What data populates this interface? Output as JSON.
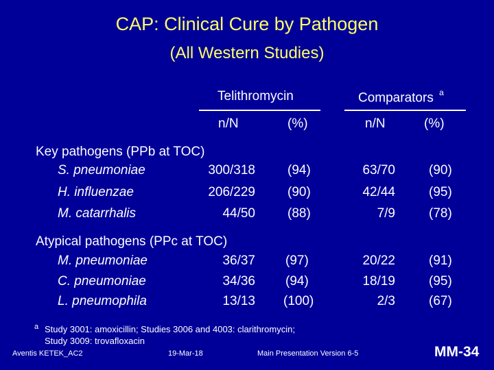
{
  "slide": {
    "title": "CAP: Clinical Cure by Pathogen",
    "subtitle": "(All Western Studies)"
  },
  "table": {
    "group1_header": "Telithromycin",
    "group2_header": "Comparators",
    "group2_sup": "a",
    "col_n": "n/N",
    "col_pct": "(%)",
    "sections": [
      {
        "label": "Key pathogens (PPb at TOC)",
        "rows": [
          {
            "pathogen": "S. pneumoniae",
            "tel_n": "300/318",
            "tel_pct": "(94)",
            "comp_n": "63/70",
            "comp_pct": "(90)"
          },
          {
            "pathogen": "H. influenzae",
            "tel_n": "206/229",
            "tel_pct": "(90)",
            "comp_n": "42/44",
            "comp_pct": "(95)"
          },
          {
            "pathogen": "M. catarrhalis",
            "tel_n": "44/50",
            "tel_pct": "(88)",
            "comp_n": "7/9",
            "comp_pct": "(78)"
          }
        ]
      },
      {
        "label": "Atypical pathogens (PPc at TOC)",
        "rows": [
          {
            "pathogen": "M. pneumoniae",
            "tel_n": "36/37",
            "tel_pct": "(97)",
            "comp_n": "20/22",
            "comp_pct": "(91)"
          },
          {
            "pathogen": "C. pneumoniae",
            "tel_n": "34/36",
            "tel_pct": "(94)",
            "comp_n": "18/19",
            "comp_pct": "(95)"
          },
          {
            "pathogen": "L. pneumophila",
            "tel_n": "13/13",
            "tel_pct": "(100)",
            "comp_n": "2/3",
            "comp_pct": "(67)"
          }
        ]
      }
    ]
  },
  "footnote": {
    "marker": "a",
    "line1": "Study 3001: amoxicillin;  Studies 3006 and 4003: clarithromycin;",
    "line2": "Study 3009: trovafloxacin"
  },
  "footer": {
    "left": "Aventis KETEK_AC2",
    "date": "19-Mar-18",
    "center": "Main Presentation Version 6-5",
    "slide_id": "MM-34"
  }
}
